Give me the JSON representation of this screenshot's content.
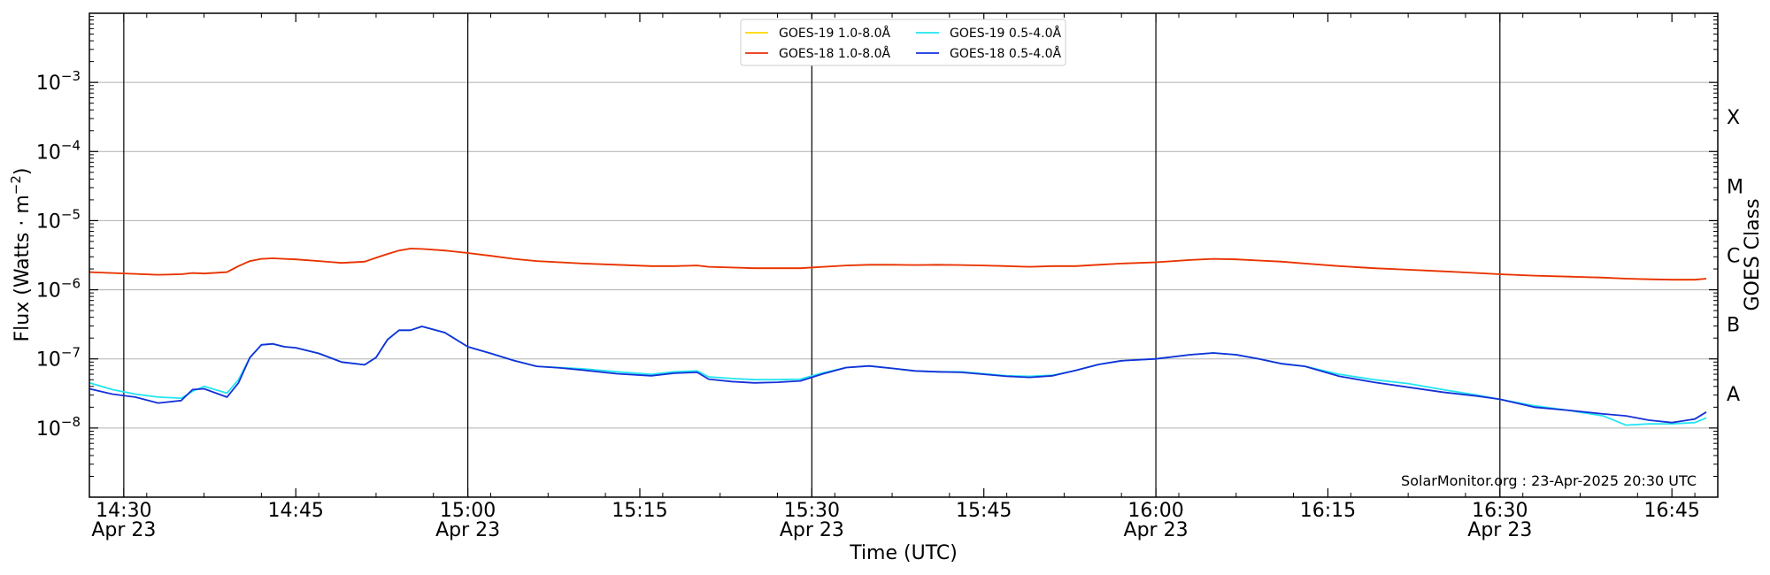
{
  "chart_data": {
    "type": "line",
    "xlabel": "Time (UTC)",
    "ylabel": "Flux (Watts · m⁻²)",
    "right_label": "GOES Class",
    "credit": "SolarMonitor.org : 23-Apr-2025 20:30 UTC",
    "y_scale": "log",
    "ylim": [
      1e-09,
      0.01
    ],
    "xlim": [
      "2025-04-23 14:27",
      "2025-04-23 16:49"
    ],
    "grid": "horizontal at decades",
    "legend_position": "top-center",
    "y_ticks": [
      {
        "value": 1e-08,
        "base": "10",
        "exp": "−8"
      },
      {
        "value": 1e-07,
        "base": "10",
        "exp": "−7"
      },
      {
        "value": 1e-06,
        "base": "10",
        "exp": "−6"
      },
      {
        "value": 1e-05,
        "base": "10",
        "exp": "−5"
      },
      {
        "value": 0.0001,
        "base": "10",
        "exp": "−4"
      },
      {
        "value": 0.001,
        "base": "10",
        "exp": "−3"
      }
    ],
    "x_ticks": [
      {
        "t": "2025-04-23 14:30",
        "label": "14:30",
        "sublabel": "Apr 23",
        "major": true
      },
      {
        "t": "2025-04-23 14:45",
        "label": "14:45",
        "sublabel": "",
        "major": false
      },
      {
        "t": "2025-04-23 15:00",
        "label": "15:00",
        "sublabel": "Apr 23",
        "major": true
      },
      {
        "t": "2025-04-23 15:15",
        "label": "15:15",
        "sublabel": "",
        "major": false
      },
      {
        "t": "2025-04-23 15:30",
        "label": "15:30",
        "sublabel": "Apr 23",
        "major": true
      },
      {
        "t": "2025-04-23 15:45",
        "label": "15:45",
        "sublabel": "",
        "major": false
      },
      {
        "t": "2025-04-23 16:00",
        "label": "16:00",
        "sublabel": "Apr 23",
        "major": true
      },
      {
        "t": "2025-04-23 16:15",
        "label": "16:15",
        "sublabel": "",
        "major": false
      },
      {
        "t": "2025-04-23 16:30",
        "label": "16:30",
        "sublabel": "Apr 23",
        "major": true
      },
      {
        "t": "2025-04-23 16:45",
        "label": "16:45",
        "sublabel": "",
        "major": false
      }
    ],
    "goes_classes": [
      {
        "label": "A",
        "value": 3.16e-08
      },
      {
        "label": "B",
        "value": 3.16e-07
      },
      {
        "label": "C",
        "value": 3.16e-06
      },
      {
        "label": "M",
        "value": 3.16e-05
      },
      {
        "label": "X",
        "value": 0.000316
      }
    ],
    "x": [
      "2025-04-23 14:27",
      "2025-04-23 14:29",
      "2025-04-23 14:31",
      "2025-04-23 14:33",
      "2025-04-23 14:35",
      "2025-04-23 14:36",
      "2025-04-23 14:37",
      "2025-04-23 14:39",
      "2025-04-23 14:40",
      "2025-04-23 14:41",
      "2025-04-23 14:42",
      "2025-04-23 14:43",
      "2025-04-23 14:44",
      "2025-04-23 14:45",
      "2025-04-23 14:47",
      "2025-04-23 14:49",
      "2025-04-23 14:51",
      "2025-04-23 14:52",
      "2025-04-23 14:53",
      "2025-04-23 14:54",
      "2025-04-23 14:55",
      "2025-04-23 14:56",
      "2025-04-23 14:58",
      "2025-04-23 15:00",
      "2025-04-23 15:02",
      "2025-04-23 15:04",
      "2025-04-23 15:06",
      "2025-04-23 15:08",
      "2025-04-23 15:10",
      "2025-04-23 15:13",
      "2025-04-23 15:16",
      "2025-04-23 15:18",
      "2025-04-23 15:20",
      "2025-04-23 15:21",
      "2025-04-23 15:23",
      "2025-04-23 15:25",
      "2025-04-23 15:27",
      "2025-04-23 15:29",
      "2025-04-23 15:31",
      "2025-04-23 15:33",
      "2025-04-23 15:35",
      "2025-04-23 15:37",
      "2025-04-23 15:39",
      "2025-04-23 15:41",
      "2025-04-23 15:43",
      "2025-04-23 15:45",
      "2025-04-23 15:47",
      "2025-04-23 15:49",
      "2025-04-23 15:51",
      "2025-04-23 15:53",
      "2025-04-23 15:55",
      "2025-04-23 15:57",
      "2025-04-23 16:00",
      "2025-04-23 16:03",
      "2025-04-23 16:05",
      "2025-04-23 16:07",
      "2025-04-23 16:09",
      "2025-04-23 16:11",
      "2025-04-23 16:13",
      "2025-04-23 16:16",
      "2025-04-23 16:19",
      "2025-04-23 16:22",
      "2025-04-23 16:25",
      "2025-04-23 16:28",
      "2025-04-23 16:30",
      "2025-04-23 16:33",
      "2025-04-23 16:36",
      "2025-04-23 16:39",
      "2025-04-23 16:41",
      "2025-04-23 16:43",
      "2025-04-23 16:45",
      "2025-04-23 16:47",
      "2025-04-23 16:48"
    ],
    "series": [
      {
        "name": "GOES-19 1.0-8.0Å",
        "color": "#ffd700",
        "values": [
          1.8e-06,
          1.75e-06,
          1.7e-06,
          1.65e-06,
          1.68e-06,
          1.75e-06,
          1.72e-06,
          1.8e-06,
          2.2e-06,
          2.6e-06,
          2.8e-06,
          2.85e-06,
          2.8e-06,
          2.75e-06,
          2.6e-06,
          2.45e-06,
          2.55e-06,
          2.9e-06,
          3.3e-06,
          3.7e-06,
          3.95e-06,
          3.9e-06,
          3.7e-06,
          3.4e-06,
          3.1e-06,
          2.8e-06,
          2.6e-06,
          2.5e-06,
          2.4e-06,
          2.3e-06,
          2.2e-06,
          2.2e-06,
          2.25e-06,
          2.15e-06,
          2.1e-06,
          2.05e-06,
          2.05e-06,
          2.05e-06,
          2.15e-06,
          2.25e-06,
          2.3e-06,
          2.3e-06,
          2.28e-06,
          2.3e-06,
          2.28e-06,
          2.25e-06,
          2.2e-06,
          2.15e-06,
          2.2e-06,
          2.2e-06,
          2.3e-06,
          2.4e-06,
          2.5e-06,
          2.7e-06,
          2.8e-06,
          2.75e-06,
          2.65e-06,
          2.55e-06,
          2.4e-06,
          2.2e-06,
          2.05e-06,
          1.95e-06,
          1.85e-06,
          1.75e-06,
          1.68e-06,
          1.6e-06,
          1.55e-06,
          1.5e-06,
          1.45e-06,
          1.42e-06,
          1.4e-06,
          1.4e-06,
          1.45e-06
        ]
      },
      {
        "name": "GOES-18 1.0-8.0Å",
        "color": "#e8300d",
        "values": [
          1.8e-06,
          1.75e-06,
          1.7e-06,
          1.65e-06,
          1.68e-06,
          1.75e-06,
          1.72e-06,
          1.8e-06,
          2.2e-06,
          2.6e-06,
          2.8e-06,
          2.85e-06,
          2.8e-06,
          2.75e-06,
          2.6e-06,
          2.45e-06,
          2.55e-06,
          2.9e-06,
          3.3e-06,
          3.7e-06,
          3.95e-06,
          3.9e-06,
          3.7e-06,
          3.4e-06,
          3.1e-06,
          2.8e-06,
          2.6e-06,
          2.5e-06,
          2.4e-06,
          2.3e-06,
          2.2e-06,
          2.2e-06,
          2.25e-06,
          2.15e-06,
          2.1e-06,
          2.05e-06,
          2.05e-06,
          2.05e-06,
          2.15e-06,
          2.25e-06,
          2.3e-06,
          2.3e-06,
          2.28e-06,
          2.3e-06,
          2.28e-06,
          2.25e-06,
          2.2e-06,
          2.15e-06,
          2.2e-06,
          2.2e-06,
          2.3e-06,
          2.4e-06,
          2.5e-06,
          2.7e-06,
          2.8e-06,
          2.75e-06,
          2.65e-06,
          2.55e-06,
          2.4e-06,
          2.2e-06,
          2.05e-06,
          1.95e-06,
          1.85e-06,
          1.75e-06,
          1.68e-06,
          1.6e-06,
          1.55e-06,
          1.5e-06,
          1.45e-06,
          1.42e-06,
          1.4e-06,
          1.4e-06,
          1.45e-06
        ]
      },
      {
        "name": "GOES-19 0.5-4.0Å",
        "color": "#22e5f0",
        "values": [
          4.5e-08,
          3.6e-08,
          3.1e-08,
          2.8e-08,
          2.7e-08,
          3.4e-08,
          4e-08,
          3.2e-08,
          5e-08,
          1.05e-07,
          1.6e-07,
          1.65e-07,
          1.5e-07,
          1.45e-07,
          1.2e-07,
          9e-08,
          8.2e-08,
          1.05e-07,
          1.9e-07,
          2.6e-07,
          2.6e-07,
          2.95e-07,
          2.4e-07,
          1.5e-07,
          1.2e-07,
          9.5e-08,
          7.8e-08,
          7.5e-08,
          7.2e-08,
          6.5e-08,
          6e-08,
          6.5e-08,
          6.7e-08,
          5.5e-08,
          5.2e-08,
          5e-08,
          5e-08,
          5.1e-08,
          6.3e-08,
          7.5e-08,
          7.9e-08,
          7.3e-08,
          6.7e-08,
          6.5e-08,
          6.5e-08,
          6.1e-08,
          5.7e-08,
          5.6e-08,
          5.8e-08,
          6.8e-08,
          8.3e-08,
          9.4e-08,
          1e-07,
          1.15e-07,
          1.22e-07,
          1.15e-07,
          1e-07,
          8.5e-08,
          7.8e-08,
          6e-08,
          5e-08,
          4.4e-08,
          3.6e-08,
          3e-08,
          2.6e-08,
          2.1e-08,
          1.8e-08,
          1.5e-08,
          1.1e-08,
          1.15e-08,
          1.15e-08,
          1.2e-08,
          1.4e-08
        ]
      },
      {
        "name": "GOES-18 0.5-4.0Å",
        "color": "#1530d8",
        "values": [
          3.7e-08,
          3.1e-08,
          2.8e-08,
          2.3e-08,
          2.5e-08,
          3.6e-08,
          3.7e-08,
          2.8e-08,
          4.5e-08,
          1.05e-07,
          1.6e-07,
          1.65e-07,
          1.5e-07,
          1.45e-07,
          1.2e-07,
          9e-08,
          8.2e-08,
          1.05e-07,
          1.9e-07,
          2.6e-07,
          2.6e-07,
          2.95e-07,
          2.4e-07,
          1.5e-07,
          1.2e-07,
          9.5e-08,
          7.8e-08,
          7.4e-08,
          6.9e-08,
          6.1e-08,
          5.7e-08,
          6.2e-08,
          6.4e-08,
          5.1e-08,
          4.7e-08,
          4.5e-08,
          4.6e-08,
          4.8e-08,
          6.1e-08,
          7.5e-08,
          7.9e-08,
          7.3e-08,
          6.7e-08,
          6.5e-08,
          6.4e-08,
          6e-08,
          5.6e-08,
          5.4e-08,
          5.7e-08,
          6.8e-08,
          8.3e-08,
          9.4e-08,
          1e-07,
          1.15e-07,
          1.22e-07,
          1.15e-07,
          1e-07,
          8.5e-08,
          7.8e-08,
          5.6e-08,
          4.6e-08,
          3.9e-08,
          3.3e-08,
          2.9e-08,
          2.6e-08,
          2e-08,
          1.8e-08,
          1.6e-08,
          1.5e-08,
          1.3e-08,
          1.2e-08,
          1.35e-08,
          1.7e-08
        ]
      }
    ]
  }
}
